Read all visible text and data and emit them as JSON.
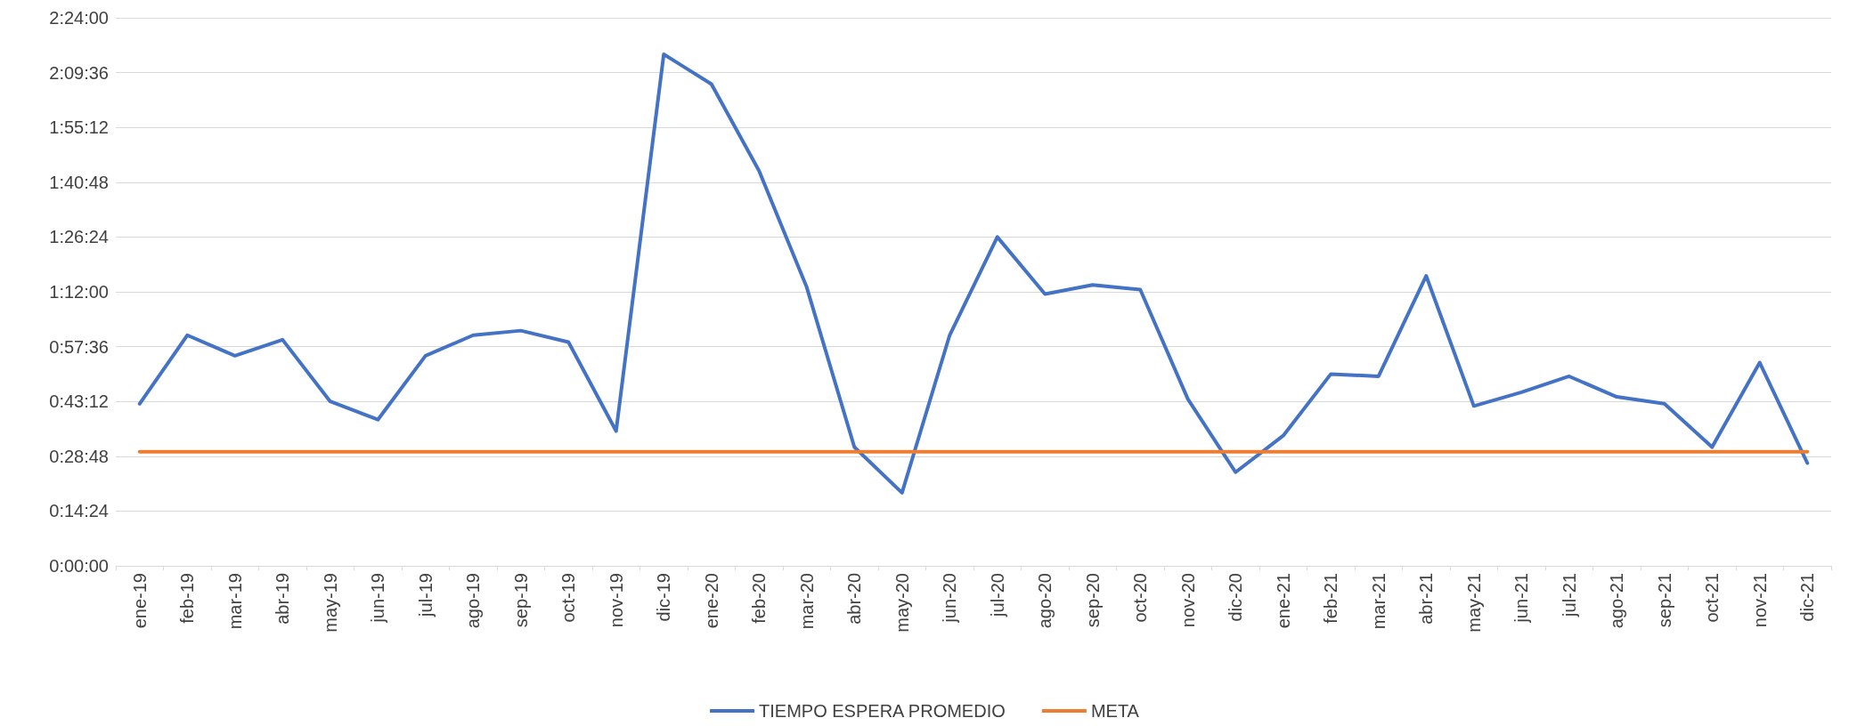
{
  "chart_data": {
    "type": "line",
    "categories": [
      "ene-19",
      "feb-19",
      "mar-19",
      "abr-19",
      "may-19",
      "jun-19",
      "jul-19",
      "ago-19",
      "sep-19",
      "oct-19",
      "nov-19",
      "dic-19",
      "ene-20",
      "feb-20",
      "mar-20",
      "abr-20",
      "may-20",
      "jun-20",
      "jul-20",
      "ago-20",
      "sep-20",
      "oct-20",
      "nov-20",
      "dic-20",
      "ene-21",
      "feb-21",
      "mar-21",
      "abr-21",
      "may-21",
      "jun-21",
      "jul-21",
      "ago-21",
      "sep-21",
      "oct-21",
      "nov-21",
      "dic-21"
    ],
    "series": [
      {
        "name": "TIEMPO ESPERA PROMEDIO",
        "color": "#4472c4",
        "values": [
          0.71,
          1.01,
          0.92,
          0.99,
          0.72,
          0.64,
          0.92,
          1.01,
          1.03,
          0.98,
          0.59,
          2.24,
          2.11,
          1.73,
          1.22,
          0.52,
          0.32,
          1.01,
          1.44,
          1.19,
          1.23,
          1.21,
          0.73,
          0.41,
          0.57,
          0.84,
          0.83,
          1.27,
          0.7,
          0.76,
          0.83,
          0.74,
          0.71,
          0.52,
          0.89,
          0.45
        ]
      },
      {
        "name": "META",
        "color": "#ed7d31",
        "values": [
          0.5,
          0.5,
          0.5,
          0.5,
          0.5,
          0.5,
          0.5,
          0.5,
          0.5,
          0.5,
          0.5,
          0.5,
          0.5,
          0.5,
          0.5,
          0.5,
          0.5,
          0.5,
          0.5,
          0.5,
          0.5,
          0.5,
          0.5,
          0.5,
          0.5,
          0.5,
          0.5,
          0.5,
          0.5,
          0.5,
          0.5,
          0.5,
          0.5,
          0.5,
          0.5,
          0.5
        ]
      }
    ],
    "ylim": [
      0,
      2.4
    ],
    "yticks": [
      {
        "value": 0,
        "label": "0:00:00"
      },
      {
        "value": 0.24,
        "label": "0:14:24"
      },
      {
        "value": 0.48,
        "label": "0:28:48"
      },
      {
        "value": 0.72,
        "label": "0:43:12"
      },
      {
        "value": 0.96,
        "label": "0:57:36"
      },
      {
        "value": 1.2,
        "label": "1:12:00"
      },
      {
        "value": 1.44,
        "label": "1:26:24"
      },
      {
        "value": 1.68,
        "label": "1:40:48"
      },
      {
        "value": 1.92,
        "label": "1:55:12"
      },
      {
        "value": 2.16,
        "label": "2:09:36"
      },
      {
        "value": 2.4,
        "label": "2:24:00"
      }
    ],
    "grid": "y",
    "legend": "bottom",
    "marker": "none",
    "line_style": "solid"
  }
}
